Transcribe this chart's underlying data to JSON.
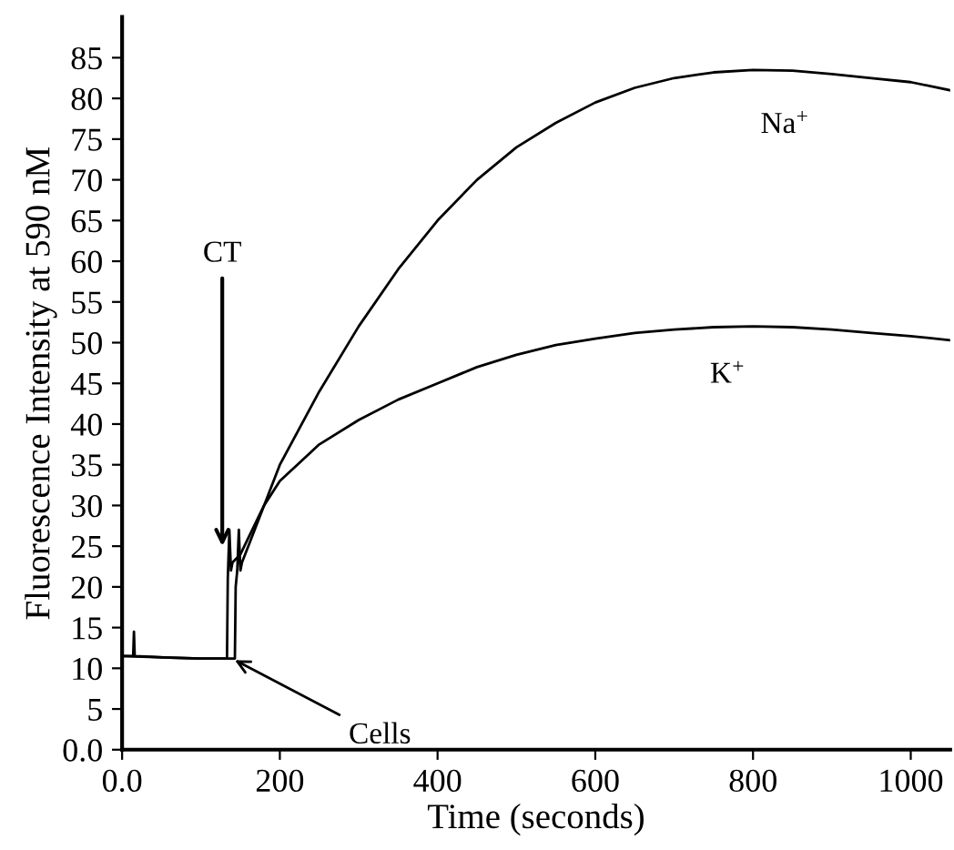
{
  "chart_data": {
    "type": "line",
    "xlabel": "Time (seconds)",
    "ylabel": "Fluorescence Intensity at 590 nM",
    "xlim": [
      0,
      1050
    ],
    "ylim": [
      0,
      90
    ],
    "xticks": [
      {
        "value": 0,
        "label": "0.0"
      },
      200,
      400,
      600,
      800,
      1000
    ],
    "yticks": [
      {
        "value": 0,
        "label": "0.0"
      },
      5,
      10,
      15,
      20,
      25,
      30,
      35,
      40,
      45,
      50,
      55,
      60,
      65,
      70,
      75,
      80,
      85
    ],
    "grid": false,
    "marker": "none",
    "line_style": "solid",
    "series": [
      {
        "name": "Na$^{+}$",
        "color": "#000000",
        "x": [
          0,
          14,
          15,
          16,
          60,
          100,
          130,
          143,
          144,
          146,
          148,
          150,
          152,
          160,
          180,
          200,
          250,
          300,
          350,
          400,
          450,
          500,
          550,
          600,
          650,
          700,
          750,
          800,
          850,
          900,
          950,
          1000,
          1050
        ],
        "values": [
          11.5,
          11.5,
          14.5,
          11.5,
          11.3,
          11.2,
          11.2,
          11.2,
          20,
          22,
          27,
          22,
          23,
          25,
          30,
          35,
          44,
          52,
          59,
          65,
          70,
          74,
          77,
          79.5,
          81.3,
          82.5,
          83.2,
          83.5,
          83.4,
          83,
          82.5,
          82,
          81
        ]
      },
      {
        "name": "K$^{+}$",
        "color": "#000000",
        "x": [
          0,
          60,
          100,
          133,
          134,
          136,
          138,
          140,
          150,
          160,
          180,
          200,
          250,
          300,
          350,
          400,
          450,
          500,
          550,
          600,
          650,
          700,
          750,
          800,
          850,
          900,
          950,
          1000,
          1050
        ],
        "values": [
          11.5,
          11.3,
          11.2,
          11.2,
          21,
          27,
          22,
          23,
          24,
          26,
          30,
          33,
          37.5,
          40.5,
          43,
          45,
          47,
          48.5,
          49.7,
          50.5,
          51.2,
          51.6,
          51.9,
          52,
          51.9,
          51.6,
          51.2,
          50.8,
          50.3
        ]
      }
    ],
    "annotations": [
      {
        "text": "CT",
        "x": 127,
        "y": 25
      },
      {
        "text": "Cells",
        "x": 143,
        "y": 11
      }
    ]
  }
}
